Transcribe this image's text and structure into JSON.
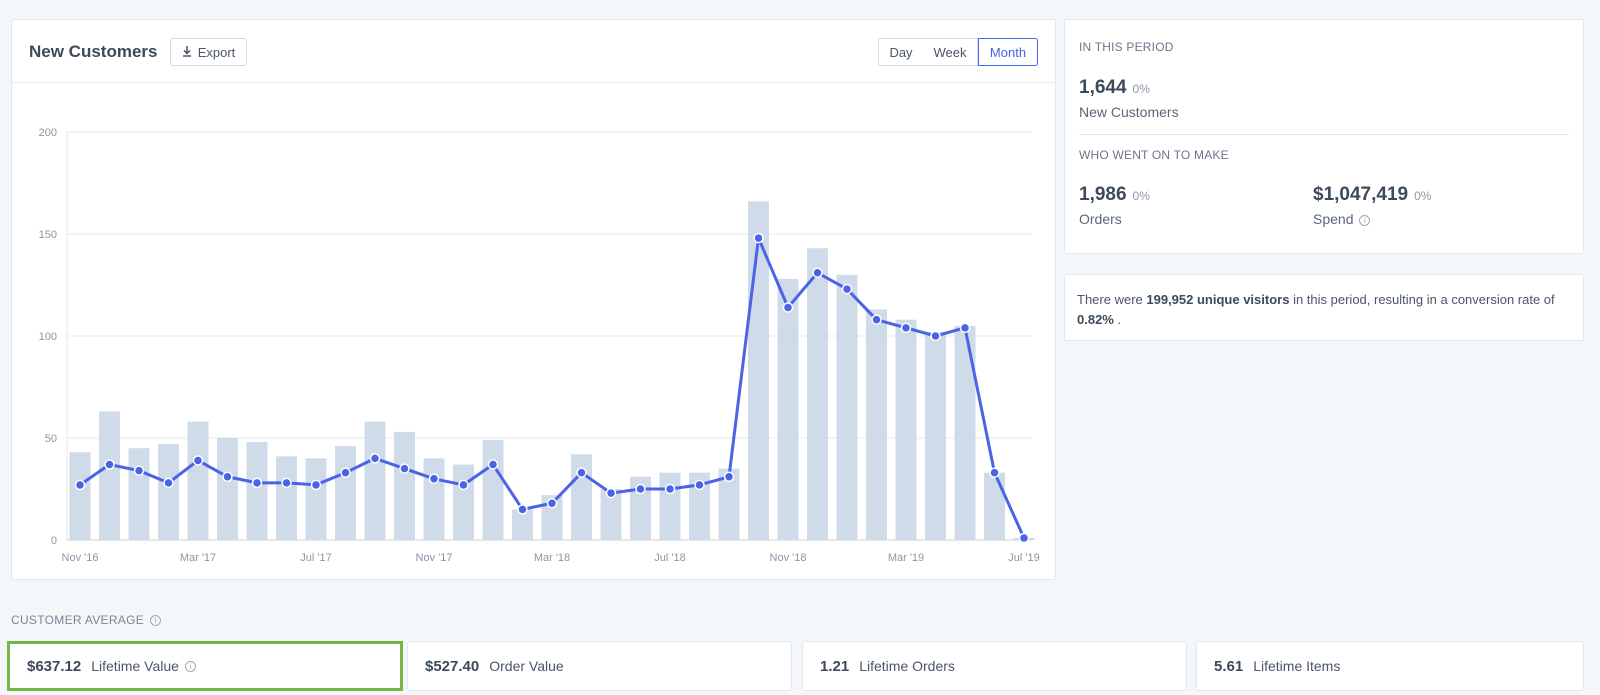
{
  "chart_card": {
    "title": "New Customers",
    "export_label": "Export",
    "ranges": [
      "Day",
      "Week",
      "Month"
    ],
    "selected_range": "Month"
  },
  "period": {
    "heading": "IN THIS PERIOD",
    "new_customers_value": "1,644",
    "new_customers_pct": "0%",
    "new_customers_label": "New Customers",
    "subheading": "WHO WENT ON TO MAKE",
    "orders_value": "1,986",
    "orders_pct": "0%",
    "orders_label": "Orders",
    "spend_value": "$1,047,419",
    "spend_pct": "0%",
    "spend_label": "Spend"
  },
  "visitors": {
    "prefix": "There were ",
    "count": "199,952 unique visitors",
    "middle": " in this period, resulting in a conversion rate of ",
    "rate": "0.82%",
    "suffix": " ."
  },
  "customer_average": {
    "label": "CUSTOMER AVERAGE",
    "metrics": [
      {
        "value": "$637.12",
        "label": "Lifetime Value"
      },
      {
        "value": "$527.40",
        "label": "Order Value"
      },
      {
        "value": "1.21",
        "label": "Lifetime Orders"
      },
      {
        "value": "5.61",
        "label": "Lifetime Items"
      }
    ]
  },
  "colors": {
    "accent": "#4a63e7",
    "bar": "#cfdbe9",
    "highlight": "#74b843"
  },
  "chart_data": {
    "type": "bar",
    "title": "New Customers",
    "ylim": [
      0,
      200
    ],
    "yticks": [
      0,
      50,
      100,
      150,
      200
    ],
    "xtick_labels": [
      "Nov '16",
      "Mar '17",
      "Jul '17",
      "Nov '17",
      "Mar '18",
      "Jul '18",
      "Nov '18",
      "Mar '19",
      "Jul '19"
    ],
    "categories": [
      "Nov '16",
      "Dec '16",
      "Jan '17",
      "Feb '17",
      "Mar '17",
      "Apr '17",
      "May '17",
      "Jun '17",
      "Jul '17",
      "Aug '17",
      "Sep '17",
      "Oct '17",
      "Nov '17",
      "Dec '17",
      "Jan '18",
      "Feb '18",
      "Mar '18",
      "Apr '18",
      "May '18",
      "Jun '18",
      "Jul '18",
      "Aug '18",
      "Sep '18",
      "Oct '18",
      "Nov '18",
      "Dec '18",
      "Jan '19",
      "Feb '19",
      "Mar '19",
      "Apr '19",
      "May '19",
      "Jun '19",
      "Jul '19"
    ],
    "series": [
      {
        "values": [
          43,
          63,
          45,
          47,
          58,
          50,
          48,
          41,
          40,
          46,
          58,
          53,
          40,
          37,
          49,
          15,
          22,
          42,
          25,
          31,
          33,
          33,
          35,
          166,
          128,
          143,
          130,
          113,
          108,
          102,
          105,
          33,
          1
        ]
      },
      {
        "values": [
          27,
          37,
          34,
          28,
          39,
          31,
          28,
          28,
          27,
          33,
          40,
          35,
          30,
          27,
          37,
          15,
          18,
          33,
          23,
          25,
          25,
          27,
          31,
          148,
          114,
          131,
          123,
          108,
          104,
          100,
          104,
          33,
          1
        ]
      }
    ],
    "grid": true
  }
}
